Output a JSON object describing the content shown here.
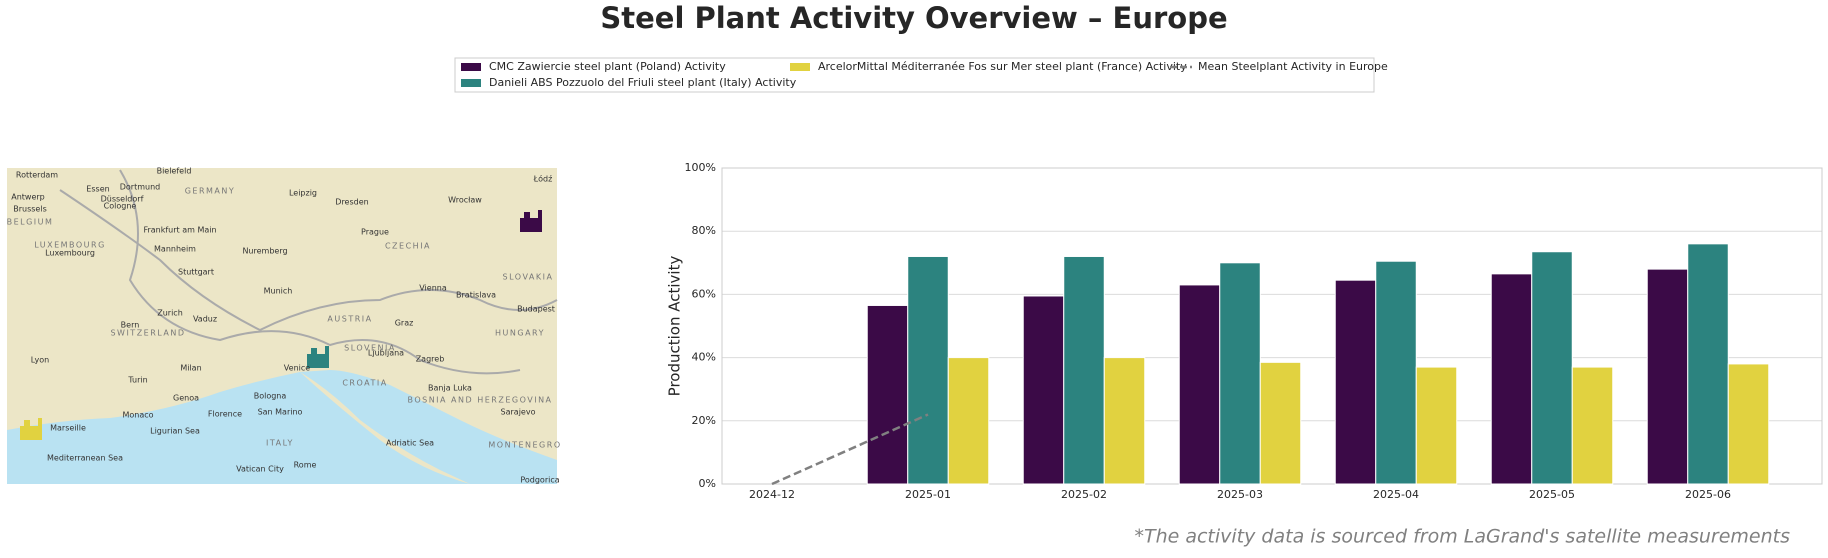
{
  "chart_data": {
    "type": "bar",
    "title": "Steel Plant Activity Overview – Europe",
    "ylabel": "Production Activity",
    "footnote": "*The activity data is sourced from LaGrand's satellite measurements",
    "categories": [
      "2024-12",
      "2025-01",
      "2025-02",
      "2025-03",
      "2025-04",
      "2025-05",
      "2025-06"
    ],
    "series": [
      {
        "name": "CMC Zawiercie steel plant (Poland) Activity",
        "color": "#3b0a47",
        "values": [
          null,
          56.5,
          59.5,
          63,
          64.5,
          66.5,
          68
        ]
      },
      {
        "name": "Danieli ABS Pozzuolo del Friuli steel plant (Italy) Activity",
        "color": "#2c837f",
        "values": [
          null,
          72,
          72,
          70,
          70.5,
          73.5,
          76
        ]
      },
      {
        "name": "ArcelorMittal Méditerranée Fos sur Mer steel plant (France) Activity",
        "color": "#e1d240",
        "values": [
          null,
          40,
          40,
          38.5,
          37,
          37,
          38
        ]
      },
      {
        "name": "Mean Steelplant Activity in Europe",
        "type": "line",
        "color": "#808080",
        "dashed": true,
        "values": [
          0,
          22,
          null,
          null,
          null,
          null,
          null
        ]
      }
    ],
    "ylim": [
      0,
      100
    ],
    "yticks": [
      {
        "value": 0,
        "label": "0%"
      },
      {
        "value": 20,
        "label": "20%"
      },
      {
        "value": 40,
        "label": "40%"
      },
      {
        "value": 60,
        "label": "60%"
      },
      {
        "value": 80,
        "label": "80%"
      },
      {
        "value": 100,
        "label": "100%"
      }
    ],
    "grid": true,
    "legend": "top",
    "map_labels": [
      "Rotterdam",
      "Essen",
      "Dortmund",
      "Bielefeld",
      "GERMANY",
      "Leipzig",
      "Dresden",
      "Wrocław",
      "Łódź",
      "Antwerp",
      "Düsseldorf",
      "Brussels",
      "Cologne",
      "BELGIUM",
      "Frankfurt am Main",
      "Prague",
      "LUXEMBOURG",
      "Luxembourg",
      "Mannheim",
      "Nuremberg",
      "CZECHIA",
      "Stuttgart",
      "SLOVAKIA",
      "Munich",
      "Vienna",
      "Bratislava",
      "Budapest",
      "Zurich",
      "Vaduz",
      "Bern",
      "AUSTRIA",
      "Graz",
      "SWITZERLAND",
      "HUNGARY",
      "SLOVENIA",
      "Ljubljana",
      "Lyon",
      "Milan",
      "Venice",
      "Zagreb",
      "Turin",
      "CROATIA",
      "Banja Luka",
      "BOSNIA AND HERZEGOVINA",
      "Bologna",
      "Genoa",
      "Florence",
      "San Marino",
      "Sarajevo",
      "Monaco",
      "Marseille",
      "Ligurian Sea",
      "ITALY",
      "Adriatic Sea",
      "MONTENEGRO",
      "Mediterranean Sea",
      "Vatican City",
      "Rome",
      "Podgorica"
    ]
  }
}
